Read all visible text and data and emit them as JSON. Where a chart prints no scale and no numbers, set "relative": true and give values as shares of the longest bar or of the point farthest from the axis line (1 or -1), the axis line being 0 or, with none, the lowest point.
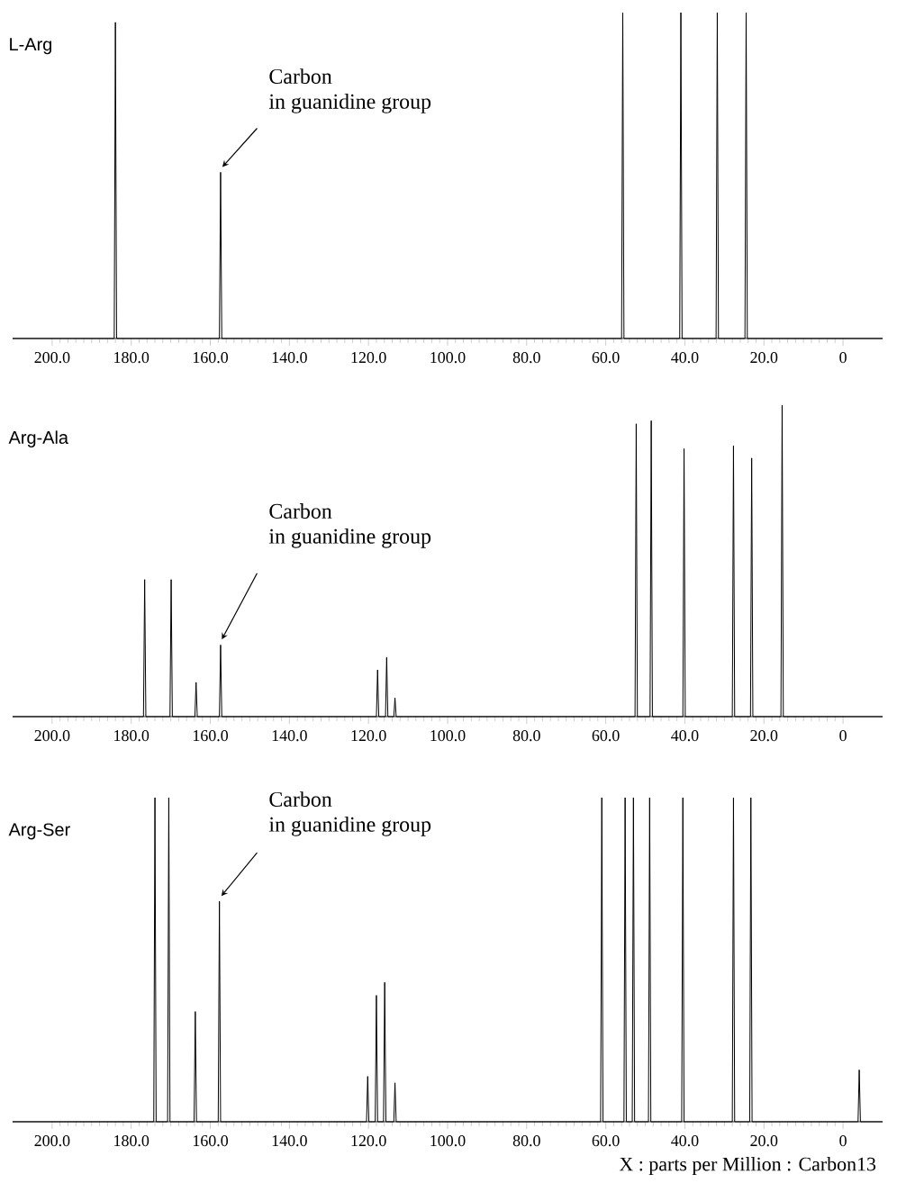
{
  "chart_data": [
    {
      "type": "line",
      "relative": true,
      "title": "L-Arg",
      "xlim": [
        210,
        -10
      ],
      "tick_labels": "x",
      "xticks": [
        {
          "value": 200,
          "label": "200.0"
        },
        {
          "value": 180,
          "label": "180.0"
        },
        {
          "value": 160,
          "label": "160.0"
        },
        {
          "value": 140,
          "label": "140.0"
        },
        {
          "value": 120,
          "label": "120.0"
        },
        {
          "value": 100,
          "label": "100.0"
        },
        {
          "value": 80,
          "label": "80.0"
        },
        {
          "value": 60,
          "label": "60.0"
        },
        {
          "value": 40,
          "label": "40.0"
        },
        {
          "value": 20,
          "label": "20.0"
        },
        0
      ],
      "series": [
        {
          "color": "#000000",
          "x": [
            210,
            184.3,
            184,
            183.7,
            157.7,
            157.4,
            157.1,
            56,
            55.7,
            55.4,
            41.3,
            41,
            40.7,
            32.1,
            31.8,
            31.5,
            24.8,
            24.5,
            24.2,
            -10
          ],
          "values": [
            0,
            0,
            0.97,
            0,
            0,
            0.51,
            0,
            0,
            1,
            0,
            0,
            1,
            0,
            0,
            1,
            0,
            0,
            1,
            0,
            0
          ]
        }
      ],
      "annotations": [
        "Carbon\nin guanidine group"
      ]
    },
    {
      "type": "line",
      "relative": true,
      "title": "Arg-Ala",
      "xlim": [
        210,
        -10
      ],
      "tick_labels": "x",
      "xticks": [
        {
          "value": 200,
          "label": "200.0"
        },
        {
          "value": 180,
          "label": "180.0"
        },
        {
          "value": 160,
          "label": "160.0"
        },
        {
          "value": 140,
          "label": "140.0"
        },
        {
          "value": 120,
          "label": "120.0"
        },
        {
          "value": 100,
          "label": "100.0"
        },
        {
          "value": 80,
          "label": "80.0"
        },
        {
          "value": 60,
          "label": "60.0"
        },
        {
          "value": 40,
          "label": "40.0"
        },
        {
          "value": 20,
          "label": "20.0"
        },
        0
      ],
      "series": [
        {
          "color": "#000000",
          "x": [
            210,
            176.9,
            176.6,
            176.3,
            170.2,
            169.9,
            169.6,
            163.9,
            163.6,
            163.3,
            157.7,
            157.4,
            157.1,
            118,
            117.7,
            117.4,
            115.7,
            115.4,
            115.1,
            113.6,
            113.3,
            113,
            52.6,
            52.3,
            52,
            48.8,
            48.5,
            48.2,
            40.5,
            40.2,
            39.9,
            28,
            27.7,
            27.4,
            23.4,
            23.1,
            22.8,
            15.7,
            15.4,
            15.1,
            -10
          ],
          "values": [
            0,
            0,
            0.44,
            0,
            0,
            0.44,
            0,
            0,
            0.11,
            0,
            0,
            0.23,
            0,
            0,
            0.15,
            0,
            0,
            0.19,
            0,
            0,
            0.06,
            0,
            0,
            0.94,
            0,
            0,
            0.95,
            0,
            0,
            0.86,
            0,
            0,
            0.87,
            0,
            0,
            0.83,
            0,
            0,
            1,
            0,
            0
          ]
        }
      ],
      "annotations": [
        "Carbon\nin guanidine group"
      ]
    },
    {
      "type": "line",
      "relative": true,
      "title": "Arg-Ser",
      "xlim": [
        210,
        -10
      ],
      "tick_labels": "x",
      "xlabel": "X : parts per Million : Carbon13",
      "xticks": [
        {
          "value": 200,
          "label": "200.0"
        },
        {
          "value": 180,
          "label": "180.0"
        },
        {
          "value": 160,
          "label": "160.0"
        },
        {
          "value": 140,
          "label": "140.0"
        },
        {
          "value": 120,
          "label": "120.0"
        },
        {
          "value": 100,
          "label": "100.0"
        },
        {
          "value": 80,
          "label": "80.0"
        },
        {
          "value": 60,
          "label": "60.0"
        },
        {
          "value": 40,
          "label": "40.0"
        },
        {
          "value": 20,
          "label": "20.0"
        },
        0
      ],
      "series": [
        {
          "color": "#000000",
          "x": [
            210,
            174.3,
            174,
            173.7,
            170.8,
            170.5,
            170.2,
            164.1,
            163.8,
            163.5,
            158,
            157.7,
            157.4,
            120.5,
            120.2,
            119.9,
            118.3,
            118,
            117.7,
            116.2,
            115.9,
            115.6,
            113.6,
            113.3,
            113,
            61.3,
            61,
            60.7,
            55.4,
            55.1,
            54.8,
            53.3,
            53,
            52.7,
            49.2,
            48.9,
            48.6,
            40.8,
            40.5,
            40.2,
            28,
            27.7,
            27.4,
            23.6,
            23.3,
            23,
            -3.8,
            -4.1,
            -4.4,
            -10
          ],
          "values": [
            0,
            0,
            1,
            0,
            0,
            1,
            0,
            0,
            0.34,
            0,
            0,
            0.68,
            0,
            0,
            0.14,
            0,
            0,
            0.39,
            0,
            0,
            0.43,
            0,
            0,
            0.12,
            0,
            0,
            1,
            0,
            0,
            1,
            0,
            0,
            1,
            0,
            0,
            1,
            0,
            0,
            1,
            0,
            0,
            1,
            0,
            0,
            1,
            0,
            0,
            0.16,
            0,
            0
          ]
        }
      ],
      "annotations": [
        "Carbon\nin guanidine group"
      ]
    }
  ]
}
